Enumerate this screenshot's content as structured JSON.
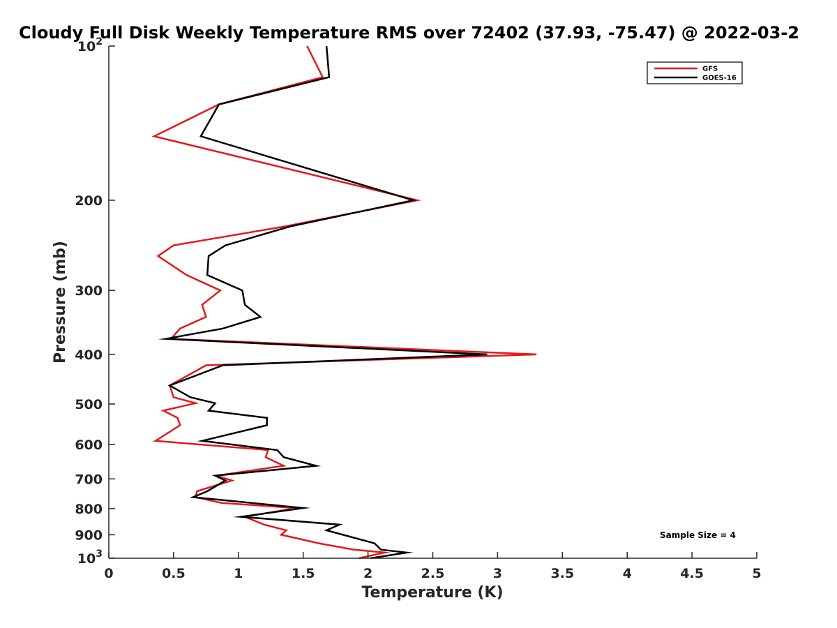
{
  "chart_data": {
    "type": "line",
    "title": "Cloudy Full Disk Weekly Temperature RMS over 72402 (37.93, -75.47) @ 2022-03-2",
    "xlabel": "Temperature (K)",
    "ylabel": "Pressure (mb)",
    "xlim": [
      0,
      5
    ],
    "ylim": [
      100,
      1000
    ],
    "y_scale": "log",
    "y_reversed": true,
    "grid": false,
    "legend_position": "top-right",
    "x_ticks": [
      "0",
      "0.5",
      "1",
      "1.5",
      "2",
      "2.5",
      "3",
      "3.5",
      "4",
      "4.5",
      "5"
    ],
    "y_ticks": [
      {
        "value": 100,
        "base": "10",
        "exp": "2"
      },
      {
        "value": 200,
        "label": "200"
      },
      {
        "value": 300,
        "label": "300"
      },
      {
        "value": 400,
        "label": "400"
      },
      {
        "value": 500,
        "label": "500"
      },
      {
        "value": 600,
        "label": "600"
      },
      {
        "value": 700,
        "label": "700"
      },
      {
        "value": 800,
        "label": "800"
      },
      {
        "value": 900,
        "label": "900"
      },
      {
        "value": 1000,
        "base": "10",
        "exp": "3"
      }
    ],
    "annotation": "Sample Size = 4",
    "series": [
      {
        "name": "GFS",
        "color": "#e41a1c",
        "points": [
          [
            1.53,
            100
          ],
          [
            1.65,
            115
          ],
          [
            0.85,
            130
          ],
          [
            0.35,
            150
          ],
          [
            2.38,
            200
          ],
          [
            1.36,
            225
          ],
          [
            0.5,
            245
          ],
          [
            0.38,
            257
          ],
          [
            0.6,
            280
          ],
          [
            0.86,
            300
          ],
          [
            0.72,
            320
          ],
          [
            0.75,
            338
          ],
          [
            0.55,
            356
          ],
          [
            0.48,
            373
          ],
          [
            3.3,
            400
          ],
          [
            0.75,
            420
          ],
          [
            0.47,
            460
          ],
          [
            0.5,
            485
          ],
          [
            0.67,
            498
          ],
          [
            0.42,
            515
          ],
          [
            0.53,
            532
          ],
          [
            0.55,
            550
          ],
          [
            0.36,
            590
          ],
          [
            1.23,
            615
          ],
          [
            1.21,
            635
          ],
          [
            1.35,
            660
          ],
          [
            0.83,
            690
          ],
          [
            0.95,
            705
          ],
          [
            0.68,
            740
          ],
          [
            0.67,
            760
          ],
          [
            0.87,
            780
          ],
          [
            1.45,
            798
          ],
          [
            1.05,
            830
          ],
          [
            1.2,
            860
          ],
          [
            1.37,
            882
          ],
          [
            1.33,
            900
          ],
          [
            1.62,
            935
          ],
          [
            1.89,
            962
          ],
          [
            2.13,
            975
          ],
          [
            1.93,
            1000
          ]
        ]
      },
      {
        "name": "GOES-16",
        "color": "#000000",
        "points": [
          [
            1.68,
            100
          ],
          [
            1.7,
            115
          ],
          [
            0.85,
            130
          ],
          [
            0.71,
            150
          ],
          [
            2.35,
            200
          ],
          [
            1.4,
            225
          ],
          [
            0.9,
            245
          ],
          [
            0.77,
            257
          ],
          [
            0.76,
            280
          ],
          [
            1.03,
            300
          ],
          [
            1.05,
            320
          ],
          [
            1.17,
            338
          ],
          [
            0.88,
            356
          ],
          [
            0.44,
            373
          ],
          [
            2.92,
            400
          ],
          [
            0.88,
            420
          ],
          [
            0.47,
            460
          ],
          [
            0.63,
            485
          ],
          [
            0.82,
            498
          ],
          [
            0.77,
            515
          ],
          [
            1.22,
            532
          ],
          [
            1.22,
            550
          ],
          [
            0.72,
            590
          ],
          [
            1.3,
            615
          ],
          [
            1.35,
            635
          ],
          [
            1.6,
            660
          ],
          [
            0.82,
            690
          ],
          [
            0.9,
            705
          ],
          [
            0.76,
            740
          ],
          [
            0.65,
            760
          ],
          [
            1.5,
            798
          ],
          [
            1.02,
            830
          ],
          [
            1.78,
            860
          ],
          [
            1.68,
            882
          ],
          [
            2.05,
            935
          ],
          [
            2.1,
            962
          ],
          [
            2.3,
            975
          ],
          [
            2.02,
            1000
          ]
        ]
      }
    ]
  }
}
